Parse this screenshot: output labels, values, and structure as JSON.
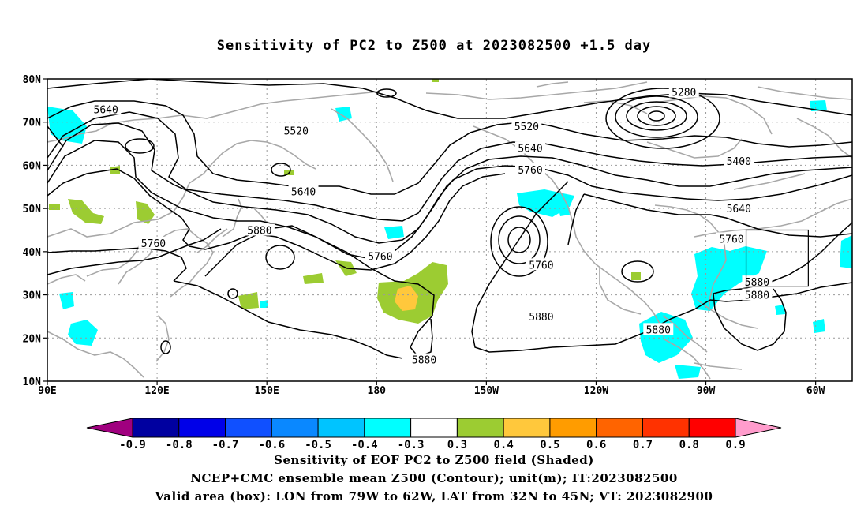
{
  "title": "Sensitivity of PC2 to Z500 at 2023082500 +1.5 day",
  "captions": [
    "Sensitivity of EOF PC2 to Z500 field (Shaded)",
    "NCEP+CMC ensemble mean Z500 (Contour); unit(m); IT:2023082500",
    "Valid area (box): LON from 79W to 62W, LAT from 32N to 45N; VT: 2023082900"
  ],
  "map": {
    "lon_range": [
      90,
      310
    ],
    "lat_range": [
      10,
      80
    ],
    "lat_ticks": [
      "80N",
      "70N",
      "60N",
      "50N",
      "40N",
      "30N",
      "20N",
      "10N"
    ],
    "lon_ticks": [
      "90E",
      "120E",
      "150E",
      "180",
      "150W",
      "120W",
      "90W",
      "60W"
    ],
    "valid_box": {
      "lon_min": -79,
      "lon_max": -62,
      "lat_min": 32,
      "lat_max": 45
    },
    "contour_labels": [
      {
        "text": "5640",
        "lon": 106,
        "lat": 73
      },
      {
        "text": "5520",
        "lon": 158,
        "lat": 68
      },
      {
        "text": "5520",
        "lon": 221,
        "lat": 69
      },
      {
        "text": "5280",
        "lon": 264,
        "lat": 77
      },
      {
        "text": "5640",
        "lon": 222,
        "lat": 64
      },
      {
        "text": "5760",
        "lon": 222,
        "lat": 59
      },
      {
        "text": "5400",
        "lon": 279,
        "lat": 61
      },
      {
        "text": "5640",
        "lon": 160,
        "lat": 54
      },
      {
        "text": "5640",
        "lon": 279,
        "lat": 50
      },
      {
        "text": "5880",
        "lon": 148,
        "lat": 45
      },
      {
        "text": "5760",
        "lon": 277,
        "lat": 43
      },
      {
        "text": "5760",
        "lon": 119,
        "lat": 42
      },
      {
        "text": "5760",
        "lon": 181,
        "lat": 39
      },
      {
        "text": "5760",
        "lon": 225,
        "lat": 37
      },
      {
        "text": "5880",
        "lon": 284,
        "lat": 33
      },
      {
        "text": "5880",
        "lon": 284,
        "lat": 30
      },
      {
        "text": "5880",
        "lon": 225,
        "lat": 25
      },
      {
        "text": "5880",
        "lon": 257,
        "lat": 22
      },
      {
        "text": "5880",
        "lon": 193,
        "lat": 15
      }
    ]
  },
  "colorbar": {
    "labels": [
      "-0.9",
      "-0.8",
      "-0.7",
      "-0.6",
      "-0.5",
      "-0.4",
      "-0.3",
      "0.3",
      "0.4",
      "0.5",
      "0.6",
      "0.7",
      "0.8",
      "0.9"
    ],
    "colors": [
      "#a0007f",
      "#0000a0",
      "#0000e8",
      "#1050ff",
      "#0a88ff",
      "#00c4ff",
      "#00ffff",
      "#ffffff",
      "#9ccc32",
      "#ffc83c",
      "#ff9c00",
      "#ff6400",
      "#ff3200",
      "#ff0000",
      "#ff9ccc"
    ]
  },
  "colors": {
    "contour": "#000000",
    "coast": "#a8a8a8",
    "grid": "#9a9a9a",
    "negative_shade": "#00ffff",
    "positive_shade": "#9ccc32",
    "strong_positive": "#ffc83c"
  }
}
